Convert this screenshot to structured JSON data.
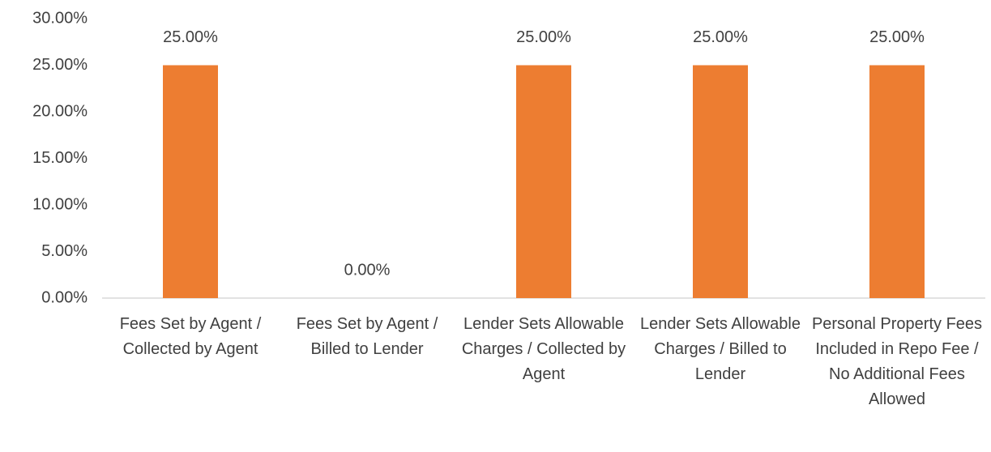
{
  "chart_data": {
    "type": "bar",
    "categories": [
      "Fees Set by Agent / Collected by Agent",
      "Fees Set by Agent / Billed to Lender",
      "Lender Sets Allowable Charges / Collected by Agent",
      "Lender Sets Allowable Charges / Billed to Lender",
      "Personal Property Fees Included in Repo Fee / No Additional Fees Allowed"
    ],
    "values": [
      25,
      0,
      25,
      25,
      25
    ],
    "value_labels": [
      "25.00%",
      "0.00%",
      "25.00%",
      "25.00%",
      "25.00%"
    ],
    "color": "#ed7d31",
    "ylim": [
      0,
      30
    ],
    "yticks": [
      {
        "value": 0,
        "label": "0.00%"
      },
      {
        "value": 5,
        "label": "5.00%"
      },
      {
        "value": 10,
        "label": "10.00%"
      },
      {
        "value": 15,
        "label": "15.00%"
      },
      {
        "value": 20,
        "label": "20.00%"
      },
      {
        "value": 25,
        "label": "25.00%"
      },
      {
        "value": 30,
        "label": "30.00%"
      }
    ],
    "grid": false
  }
}
